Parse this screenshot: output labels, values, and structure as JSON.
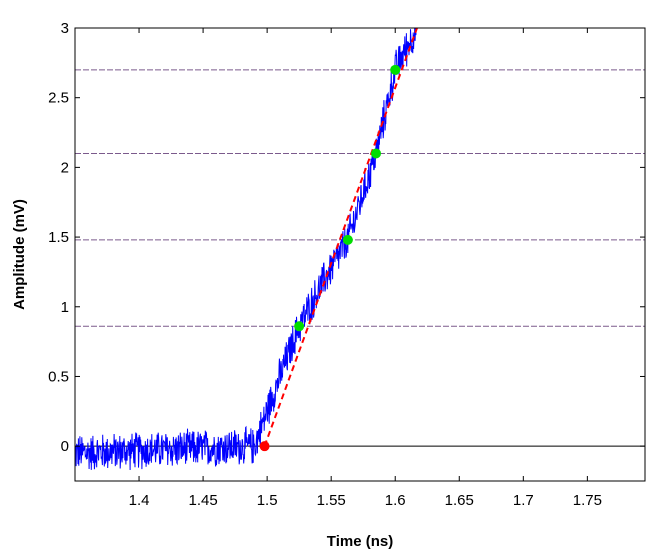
{
  "chart_data": {
    "type": "line",
    "title": "",
    "xlabel": "Time (ns)",
    "ylabel": "Amplitude (mV)",
    "xlim": [
      1.35,
      1.795
    ],
    "ylim": [
      -0.25,
      3.0
    ],
    "x_ticks": [
      "1.4",
      "1.45",
      "1.5",
      "1.55",
      "1.6",
      "1.65",
      "1.7",
      "1.75"
    ],
    "y_ticks": [
      "0",
      "0.5",
      "1",
      "1.5",
      "2",
      "2.5",
      "3"
    ],
    "grid": false,
    "legend": "none",
    "threshold_levels": [
      0.86,
      1.48,
      2.1,
      2.7
    ],
    "threshold_line_color": "#7b5a8c",
    "zero_line_color": "#000000",
    "series": [
      {
        "kind": "noisy-signal",
        "color": "#0000ff",
        "baseline_start": 1.35,
        "onset": 1.49,
        "trace_end": 1.617,
        "baseline_level": -0.05,
        "noise_amplitude_mv": 0.15,
        "waveform": [
          {
            "x": 1.35,
            "y": -0.05
          },
          {
            "x": 1.49,
            "y": 0.0
          },
          {
            "x": 1.505,
            "y": 0.38
          },
          {
            "x": 1.525,
            "y": 0.86
          },
          {
            "x": 1.545,
            "y": 1.2
          },
          {
            "x": 1.563,
            "y": 1.48
          },
          {
            "x": 1.585,
            "y": 2.1
          },
          {
            "x": 1.6,
            "y": 2.7
          },
          {
            "x": 1.617,
            "y": 3.0
          }
        ]
      },
      {
        "kind": "linear-fit",
        "color": "#ff0000",
        "dashed": true,
        "points": [
          {
            "x": 1.498,
            "y": 0.0
          },
          {
            "x": 1.617,
            "y": 3.0
          }
        ]
      }
    ],
    "markers": {
      "start": {
        "x": 1.498,
        "y": 0.0,
        "color": "#ff0000"
      },
      "crossings": [
        {
          "x": 1.525,
          "y": 0.86
        },
        {
          "x": 1.563,
          "y": 1.48
        },
        {
          "x": 1.585,
          "y": 2.1
        },
        {
          "x": 1.6,
          "y": 2.7
        }
      ],
      "crossing_color": "#00dd00"
    }
  }
}
